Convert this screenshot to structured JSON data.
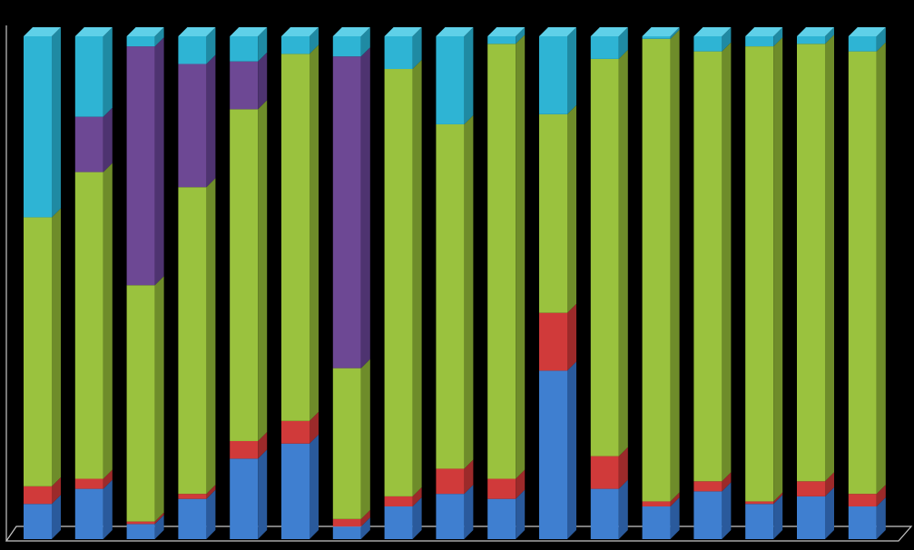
{
  "chart_data": {
    "type": "bar",
    "stacked": true,
    "normalized": true,
    "three_d": true,
    "background": "#000000",
    "axis_color": "#c8c8c8",
    "ylim": [
      0,
      100
    ],
    "categories": [
      "",
      "",
      "",
      "",
      "",
      "",
      "",
      "",
      "",
      "",
      "",
      "",
      "",
      "",
      "",
      "",
      ""
    ],
    "series": [
      {
        "color": "#3f7fd0",
        "side": "#2a5a9c",
        "top": "#6a9ee0",
        "values": [
          7,
          10,
          3,
          8,
          16,
          19,
          2.5,
          6.5,
          9,
          8,
          33.5,
          10,
          6.5,
          9.5,
          7,
          8.5,
          6.5
        ]
      },
      {
        "color": "#d03a3a",
        "side": "#9c2a2a",
        "top": "#e06a6a",
        "values": [
          3.5,
          2,
          0.5,
          1,
          3.5,
          4.5,
          1.5,
          2,
          5,
          4,
          11.5,
          6.5,
          1,
          2,
          0.5,
          3,
          2.5
        ]
      },
      {
        "color": "#9ac23e",
        "side": "#6e8c2a",
        "top": "#b8da6a",
        "values": [
          53.5,
          61,
          47,
          61,
          66,
          73,
          30,
          85,
          68.5,
          86.5,
          39.5,
          79,
          92,
          85.5,
          90.5,
          87,
          88
        ]
      },
      {
        "color": "#6d4894",
        "side": "#4e3370",
        "top": "#8e6ab4",
        "values": [
          0,
          11,
          47.5,
          24.5,
          9.5,
          0,
          62,
          0,
          0,
          0,
          0,
          0,
          0,
          0,
          0,
          0,
          0
        ]
      },
      {
        "color": "#2eb4d4",
        "side": "#1f8aa3",
        "top": "#5fd0e8",
        "values": [
          36,
          16,
          2,
          5.5,
          5,
          3.5,
          4,
          6.5,
          17.5,
          1.5,
          15.5,
          4.5,
          0.5,
          3,
          2,
          1.5,
          3
        ]
      }
    ]
  }
}
